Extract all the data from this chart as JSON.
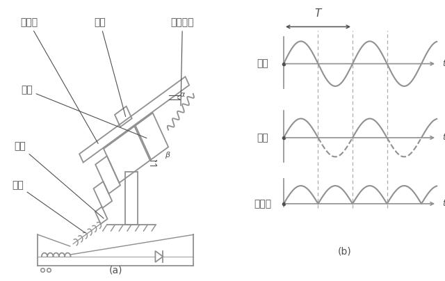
{
  "bg_color": "#ffffff",
  "lc": "#909090",
  "dc": "#505050",
  "wc": "#909090",
  "fig_width": 6.4,
  "fig_height": 4.04,
  "caption_a": "(a)",
  "caption_b": "(b)",
  "label_voltage": "电压",
  "label_current": "电流",
  "label_emforce": "电磁力",
  "label_T": "T",
  "label_t": "t",
  "label_guliao": "给料槽",
  "label_wuliao": "物料",
  "label_spring": "主振弹簧",
  "label_xiantie": "衡铁",
  "label_tiexin": "铁芯",
  "label_xianquan": "线圈",
  "font_size": 10
}
